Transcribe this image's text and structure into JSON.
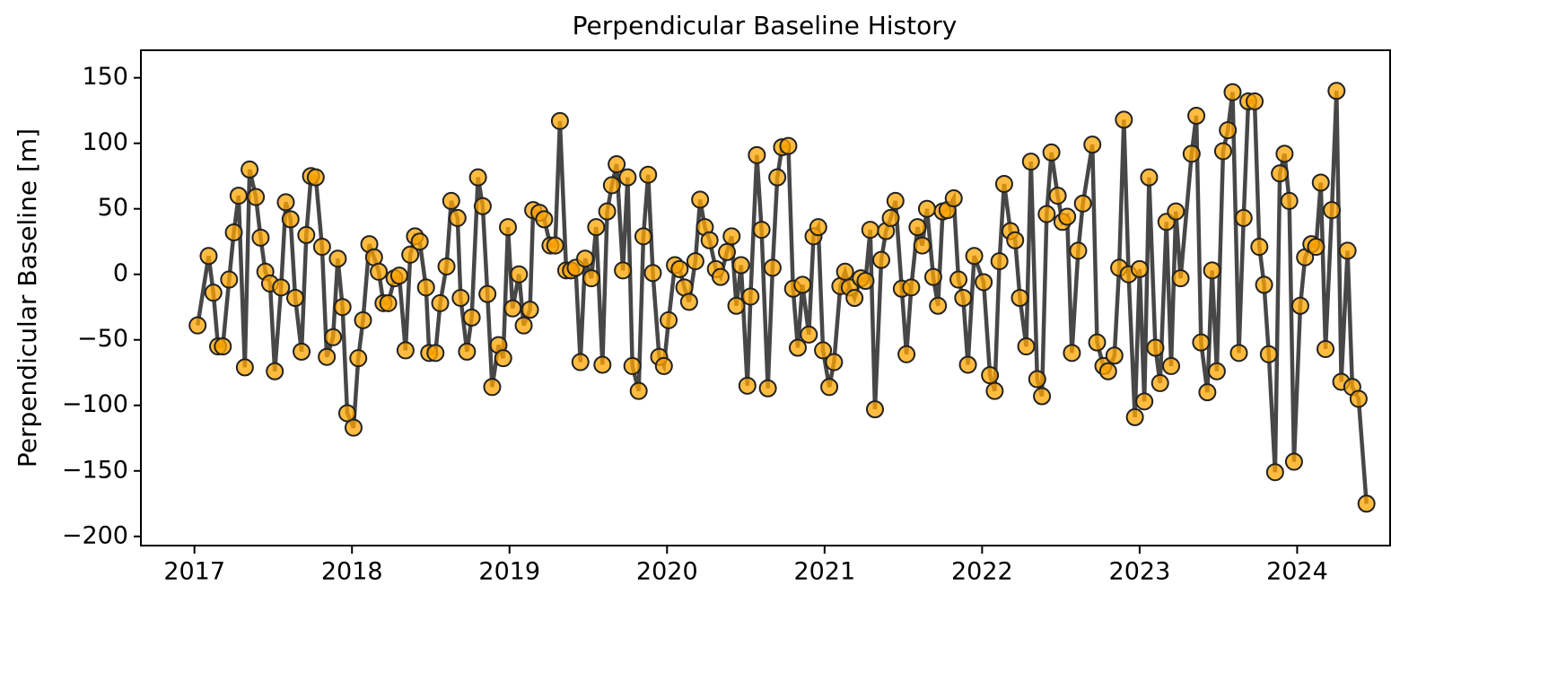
{
  "chart_data": {
    "type": "line",
    "title": "Perpendicular Baseline History",
    "y_label": "Perpendicular Baseline [m]",
    "x": [
      2017.02,
      2017.09,
      2017.12,
      2017.15,
      2017.18,
      2017.22,
      2017.25,
      2017.28,
      2017.32,
      2017.35,
      2017.39,
      2017.42,
      2017.45,
      2017.48,
      2017.51,
      2017.55,
      2017.58,
      2017.61,
      2017.64,
      2017.68,
      2017.71,
      2017.74,
      2017.77,
      2017.81,
      2017.84,
      2017.88,
      2017.91,
      2017.94,
      2017.97,
      2018.01,
      2018.04,
      2018.07,
      2018.11,
      2018.14,
      2018.17,
      2018.2,
      2018.23,
      2018.27,
      2018.3,
      2018.34,
      2018.37,
      2018.4,
      2018.43,
      2018.47,
      2018.49,
      2018.53,
      2018.56,
      2018.6,
      2018.63,
      2018.67,
      2018.69,
      2018.73,
      2018.76,
      2018.8,
      2018.83,
      2018.86,
      2018.89,
      2018.93,
      2018.96,
      2018.99,
      2019.02,
      2019.06,
      2019.09,
      2019.13,
      2019.15,
      2019.19,
      2019.22,
      2019.26,
      2019.29,
      2019.32,
      2019.36,
      2019.39,
      2019.42,
      2019.45,
      2019.48,
      2019.52,
      2019.55,
      2019.59,
      2019.62,
      2019.65,
      2019.68,
      2019.72,
      2019.75,
      2019.78,
      2019.82,
      2019.85,
      2019.88,
      2019.91,
      2019.95,
      2019.98,
      2020.01,
      2020.05,
      2020.08,
      2020.11,
      2020.14,
      2020.18,
      2020.21,
      2020.24,
      2020.27,
      2020.31,
      2020.34,
      2020.38,
      2020.41,
      2020.44,
      2020.47,
      2020.51,
      2020.53,
      2020.57,
      2020.6,
      2020.64,
      2020.67,
      2020.7,
      2020.73,
      2020.77,
      2020.8,
      2020.83,
      2020.86,
      2020.9,
      2020.93,
      2020.96,
      2020.99,
      2021.03,
      2021.06,
      2021.1,
      2021.13,
      2021.16,
      2021.19,
      2021.23,
      2021.26,
      2021.29,
      2021.32,
      2021.36,
      2021.39,
      2021.42,
      2021.45,
      2021.49,
      2021.52,
      2021.55,
      2021.59,
      2021.62,
      2021.65,
      2021.69,
      2021.72,
      2021.75,
      2021.78,
      2021.82,
      2021.85,
      2021.88,
      2021.91,
      2021.95,
      2022.01,
      2022.05,
      2022.08,
      2022.11,
      2022.14,
      2022.18,
      2022.21,
      2022.24,
      2022.28,
      2022.31,
      2022.35,
      2022.38,
      2022.41,
      2022.44,
      2022.48,
      2022.51,
      2022.54,
      2022.57,
      2022.61,
      2022.64,
      2022.7,
      2022.73,
      2022.77,
      2022.8,
      2022.84,
      2022.87,
      2022.9,
      2022.93,
      2022.97,
      2023.0,
      2023.03,
      2023.06,
      2023.1,
      2023.13,
      2023.17,
      2023.2,
      2023.23,
      2023.26,
      2023.33,
      2023.36,
      2023.39,
      2023.43,
      2023.46,
      2023.49,
      2023.53,
      2023.56,
      2023.59,
      2023.63,
      2023.66,
      2023.69,
      2023.73,
      2023.76,
      2023.79,
      2023.82,
      2023.86,
      2023.89,
      2023.92,
      2023.95,
      2023.98,
      2024.02,
      2024.05,
      2024.09,
      2024.12,
      2024.15,
      2024.18,
      2024.22,
      2024.25,
      2024.28,
      2024.32,
      2024.35,
      2024.39,
      2024.44
    ],
    "series": [
      {
        "color": "#ffa500",
        "line_color": "#333333",
        "values": [
          -39,
          14,
          -14,
          -55,
          -55,
          -4,
          32,
          60,
          -71,
          80,
          59,
          28,
          2,
          -7,
          -74,
          -10,
          55,
          42,
          -18,
          -59,
          30,
          75,
          74,
          21,
          -63,
          -48,
          12,
          -25,
          -106,
          -117,
          -64,
          -35,
          23,
          13,
          2,
          -22,
          -22,
          -3,
          -1,
          -58,
          15,
          29,
          25,
          -10,
          -60,
          -60,
          -22,
          6,
          56,
          43,
          -18,
          -59,
          -33,
          74,
          52,
          -15,
          -86,
          -54,
          -64,
          36,
          -26,
          0,
          -39,
          -27,
          49,
          47,
          42,
          22,
          22,
          117,
          3,
          3,
          5,
          -67,
          12,
          -3,
          36,
          -69,
          48,
          68,
          84,
          3,
          74,
          -70,
          -89,
          29,
          76,
          1,
          -63,
          -70,
          -35,
          7,
          4,
          -10,
          -21,
          10,
          57,
          36,
          26,
          4,
          -2,
          17,
          29,
          -24,
          7,
          -85,
          -17,
          91,
          34,
          -87,
          5,
          74,
          97,
          98,
          -11,
          -56,
          -8,
          -46,
          29,
          36,
          -58,
          -86,
          -67,
          -9,
          2,
          -10,
          -18,
          -3,
          -5,
          34,
          -103,
          11,
          33,
          43,
          56,
          -11,
          -61,
          -10,
          36,
          22,
          50,
          -2,
          -24,
          48,
          49,
          58,
          -4,
          -18,
          -69,
          14,
          -6,
          -77,
          -89,
          10,
          69,
          33,
          26,
          -18,
          -55,
          86,
          -80,
          -93,
          46,
          93,
          60,
          40,
          44,
          -60,
          18,
          54,
          99,
          -52,
          -70,
          -74,
          -62,
          5,
          118,
          0,
          -109,
          4,
          -97,
          74,
          -56,
          -83,
          40,
          -70,
          48,
          -3,
          92,
          121,
          -52,
          -90,
          3,
          -74,
          94,
          110,
          139,
          -60,
          43,
          132,
          132,
          21,
          -8,
          -61,
          -151,
          77,
          92,
          56,
          -143,
          -24,
          13,
          23,
          21,
          70,
          -57,
          49,
          140,
          -82,
          18,
          -86,
          -95,
          -175
        ]
      }
    ],
    "xlim": [
      2016.66,
      2024.59
    ],
    "xticks": [
      2017,
      2018,
      2019,
      2020,
      2021,
      2022,
      2023,
      2024
    ],
    "ylim": [
      -207,
      171
    ],
    "yticks": [
      {
        "value": -200,
        "label": "−200"
      },
      {
        "value": -150,
        "label": "−150"
      },
      {
        "value": -100,
        "label": "−100"
      },
      {
        "value": -50,
        "label": "−50"
      },
      0,
      50,
      100,
      150
    ]
  }
}
